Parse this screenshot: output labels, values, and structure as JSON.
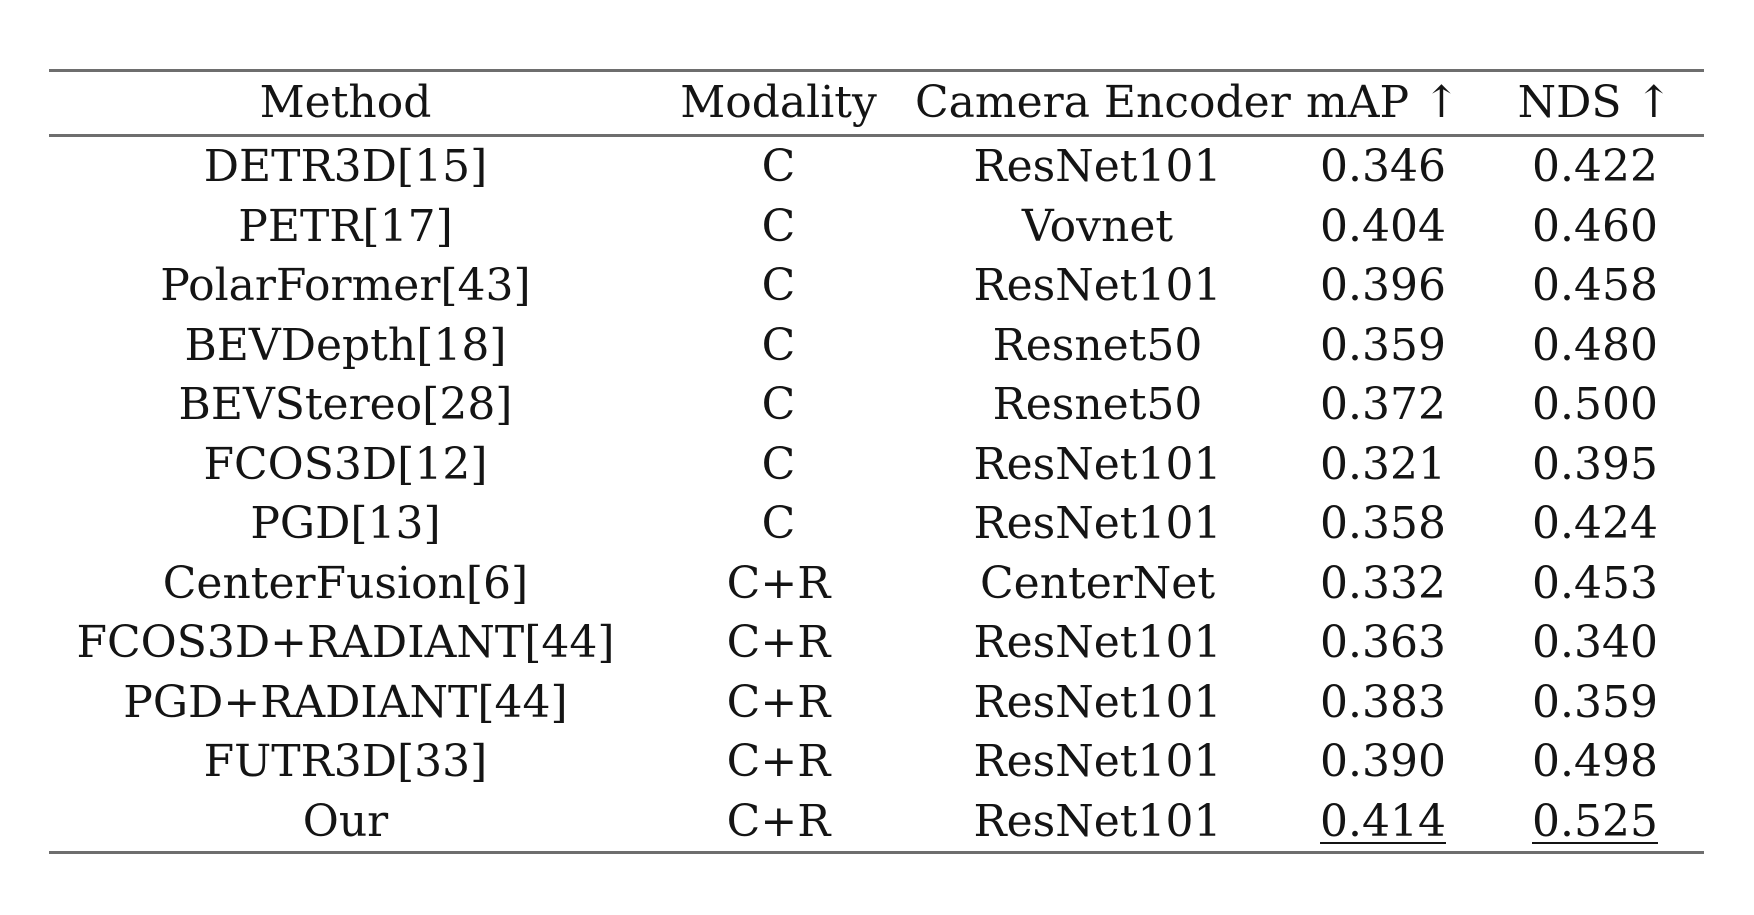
{
  "table": {
    "headers": [
      "Method",
      "Modality",
      "Camera Encoder",
      "mAP ↑",
      "NDS ↑"
    ],
    "rows": [
      {
        "method": "DETR3D[15]",
        "modality": "C",
        "encoder": "ResNet101",
        "map": "0.346",
        "nds": "0.422"
      },
      {
        "method": "PETR[17]",
        "modality": "C",
        "encoder": "Vovnet",
        "map": "0.404",
        "nds": "0.460"
      },
      {
        "method": "PolarFormer[43]",
        "modality": "C",
        "encoder": "ResNet101",
        "map": "0.396",
        "nds": "0.458"
      },
      {
        "method": "BEVDepth[18]",
        "modality": "C",
        "encoder": "Resnet50",
        "map": "0.359",
        "nds": "0.480"
      },
      {
        "method": "BEVStereo[28]",
        "modality": "C",
        "encoder": "Resnet50",
        "map": "0.372",
        "nds": "0.500"
      },
      {
        "method": "FCOS3D[12]",
        "modality": "C",
        "encoder": "ResNet101",
        "map": "0.321",
        "nds": "0.395"
      },
      {
        "method": "PGD[13]",
        "modality": "C",
        "encoder": "ResNet101",
        "map": "0.358",
        "nds": "0.424"
      },
      {
        "method": "CenterFusion[6]",
        "modality": "C+R",
        "encoder": "CenterNet",
        "map": "0.332",
        "nds": "0.453"
      },
      {
        "method": "FCOS3D+RADIANT[44]",
        "modality": "C+R",
        "encoder": "ResNet101",
        "map": "0.363",
        "nds": "0.340"
      },
      {
        "method": "PGD+RADIANT[44]",
        "modality": "C+R",
        "encoder": "ResNet101",
        "map": "0.383",
        "nds": "0.359"
      },
      {
        "method": "FUTR3D[33]",
        "modality": "C+R",
        "encoder": "ResNet101",
        "map": "0.390",
        "nds": "0.498"
      },
      {
        "method": "Our",
        "modality": "C+R",
        "encoder": "ResNet101",
        "map": "0.414",
        "nds": "0.525"
      }
    ]
  }
}
